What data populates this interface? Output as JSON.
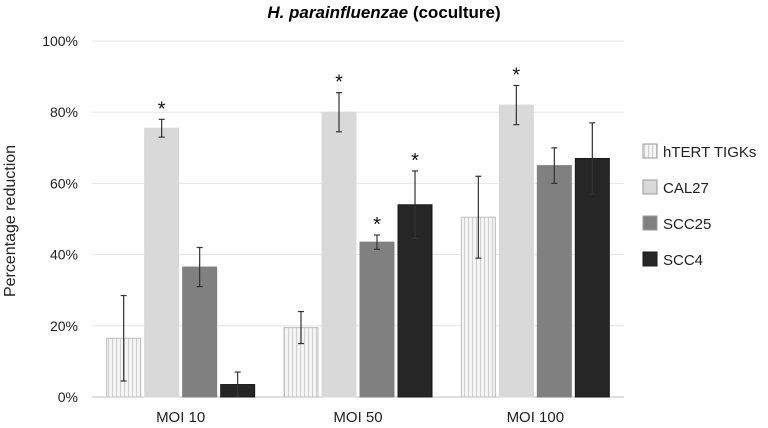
{
  "chart_data": {
    "type": "bar",
    "title": {
      "italic": "H. parainfluenzae",
      "rest": " (coculture)"
    },
    "xlabel": "",
    "ylabel": "Percentage reduction",
    "ylim": [
      0,
      100
    ],
    "yticks": [
      0,
      20,
      40,
      60,
      80,
      100
    ],
    "ytick_labels": [
      "0%",
      "20%",
      "40%",
      "60%",
      "80%",
      "100%"
    ],
    "categories": [
      "MOI 10",
      "MOI 50",
      "MOI 100"
    ],
    "legend_position": "right",
    "series": [
      {
        "name": "hTERT TIGKs",
        "color": "#f2f2f2",
        "pattern": "vertical-lines",
        "values": [
          16.5,
          19.5,
          50.5
        ],
        "errors": [
          12,
          4.5,
          11.5
        ],
        "significant": [
          false,
          false,
          false
        ]
      },
      {
        "name": "CAL27",
        "color": "#d9d9d9",
        "pattern": "none",
        "values": [
          75.5,
          80,
          82
        ],
        "errors": [
          2.5,
          5.5,
          5.5
        ],
        "significant": [
          true,
          true,
          true
        ]
      },
      {
        "name": "SCC25",
        "color": "#808080",
        "pattern": "none",
        "values": [
          36.5,
          43.5,
          65
        ],
        "errors": [
          5.5,
          2,
          5
        ],
        "significant": [
          false,
          true,
          false
        ]
      },
      {
        "name": "SCC4",
        "color": "#262626",
        "pattern": "none",
        "values": [
          3.5,
          54,
          67
        ],
        "errors": [
          3.5,
          9.5,
          10
        ],
        "significant": [
          false,
          true,
          false
        ]
      }
    ],
    "significance_marker": "*"
  }
}
